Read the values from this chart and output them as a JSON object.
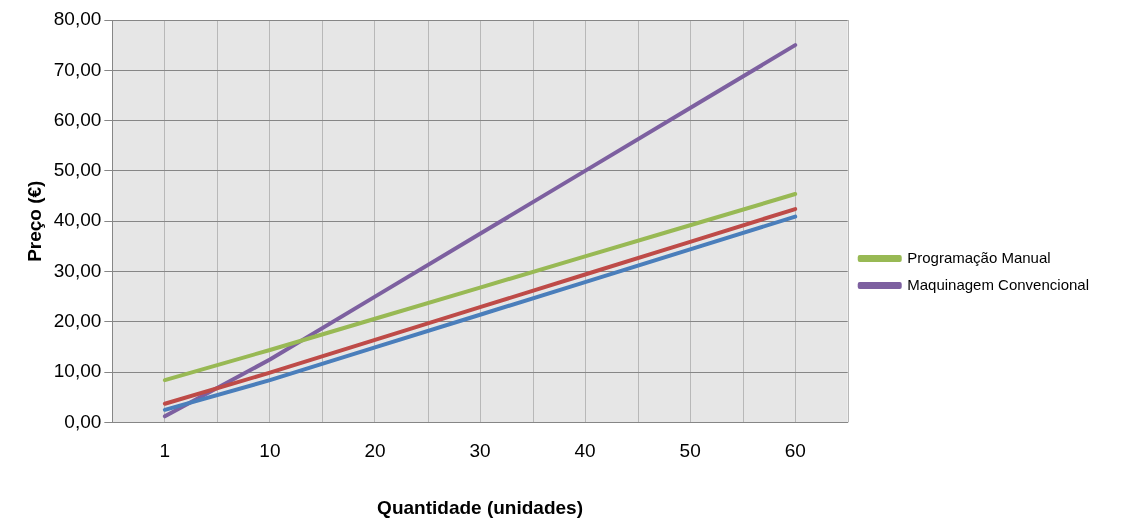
{
  "chart_data": {
    "type": "line",
    "xlabel": "Quantidade (unidades)",
    "ylabel": "Preço (€)",
    "categories": [
      "1",
      "10",
      "20",
      "30",
      "40",
      "50",
      "60"
    ],
    "series": [
      {
        "color": "#4a7ebb",
        "values": [
          2.5,
          8.4,
          14.9,
          21.4,
          27.9,
          34.4,
          40.9
        ]
      },
      {
        "color": "#be4b48",
        "values": [
          3.7,
          9.9,
          16.4,
          22.9,
          29.4,
          35.9,
          42.4
        ]
      },
      {
        "name": "Programação Manual",
        "color": "#98b954",
        "values": [
          8.4,
          14.4,
          20.6,
          26.8,
          33.0,
          39.2,
          45.4
        ]
      },
      {
        "name": "Maquinagem Convencional",
        "color": "#7d60a0",
        "values": [
          1.2,
          12.5,
          25,
          37.5,
          50,
          62.5,
          75
        ]
      }
    ],
    "ylim": [
      0,
      80
    ],
    "yticks": [
      {
        "value": 0,
        "label": "0,00"
      },
      {
        "value": 10,
        "label": "10,00"
      },
      {
        "value": 20,
        "label": "20,00"
      },
      {
        "value": 30,
        "label": "30,00"
      },
      {
        "value": 40,
        "label": "40,00"
      },
      {
        "value": 50,
        "label": "50,00"
      },
      {
        "value": 60,
        "label": "60,00"
      },
      {
        "value": 70,
        "label": "70,00"
      },
      {
        "value": 80,
        "label": "80,00"
      }
    ],
    "grid": true,
    "legend": "right",
    "marker": "none",
    "line_style": "solid"
  }
}
